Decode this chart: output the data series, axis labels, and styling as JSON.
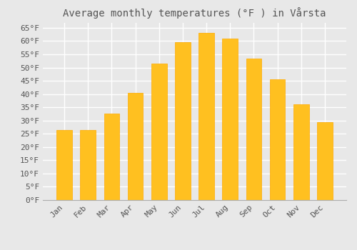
{
  "title": "Average monthly temperatures (°F ) in Vårsta",
  "categories": [
    "Jan",
    "Feb",
    "Mar",
    "Apr",
    "May",
    "Jun",
    "Jul",
    "Aug",
    "Sep",
    "Oct",
    "Nov",
    "Dec"
  ],
  "values": [
    26.5,
    26.5,
    32.5,
    40.5,
    51.5,
    59.5,
    63.0,
    61.0,
    53.5,
    45.5,
    36.0,
    29.5
  ],
  "bar_color": "#FFC020",
  "bar_edge_color": "#FFAA00",
  "background_color": "#e8e8e8",
  "plot_bg_color": "#e8e8e8",
  "grid_color": "#ffffff",
  "text_color": "#555555",
  "ytick_labels": [
    "0°F",
    "5°F",
    "10°F",
    "15°F",
    "20°F",
    "25°F",
    "30°F",
    "35°F",
    "40°F",
    "45°F",
    "50°F",
    "55°F",
    "60°F",
    "65°F"
  ],
  "ytick_values": [
    0,
    5,
    10,
    15,
    20,
    25,
    30,
    35,
    40,
    45,
    50,
    55,
    60,
    65
  ],
  "ylim": [
    0,
    67
  ],
  "title_fontsize": 10,
  "tick_fontsize": 8,
  "font_family": "monospace"
}
